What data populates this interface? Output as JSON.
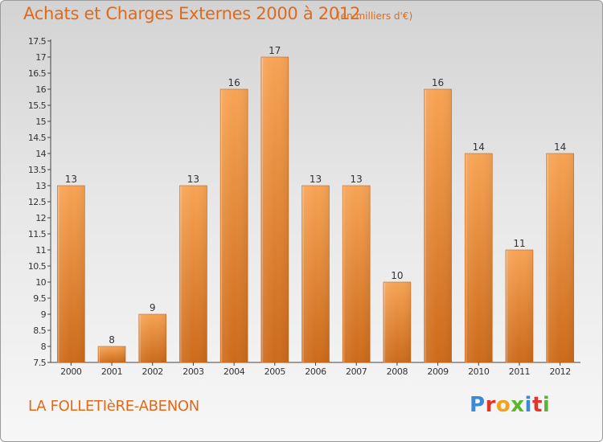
{
  "header": {
    "title": "Achats et Charges Externes 2000 à 2012",
    "unit_note": "(en milliers d'€)"
  },
  "footer": {
    "commune": "LA FOLLETIèRE-ABENON",
    "brand": {
      "letters": [
        "P",
        "r",
        "o",
        "x",
        "i",
        "t",
        "i"
      ],
      "colors": [
        "#3a8ad6",
        "#e0352b",
        "#f2a21d",
        "#5cb531",
        "#3a8ad6",
        "#e0352b",
        "#5cb531"
      ]
    }
  },
  "colors": {
    "accent": "#e06a1c",
    "bar_top": "#f7a354",
    "bar_bottom": "#cc6a1a"
  },
  "chart_data": {
    "type": "bar",
    "title": "Achats et Charges Externes 2000 à 2012",
    "subtitle": "(en milliers d'€)",
    "categories": [
      "2000",
      "2001",
      "2002",
      "2003",
      "2004",
      "2005",
      "2006",
      "2007",
      "2008",
      "2009",
      "2010",
      "2011",
      "2012"
    ],
    "values": [
      13,
      8,
      9,
      13,
      16,
      17,
      13,
      13,
      10,
      16,
      14,
      11,
      14
    ],
    "ylim": [
      7.5,
      17.5
    ],
    "yticks": [
      7.5,
      8,
      8.5,
      9,
      9.5,
      10,
      10.5,
      11,
      11.5,
      12,
      12.5,
      13,
      13.5,
      14,
      14.5,
      15,
      15.5,
      16,
      16.5,
      17,
      17.5
    ],
    "grid": false,
    "data_labels": true
  }
}
